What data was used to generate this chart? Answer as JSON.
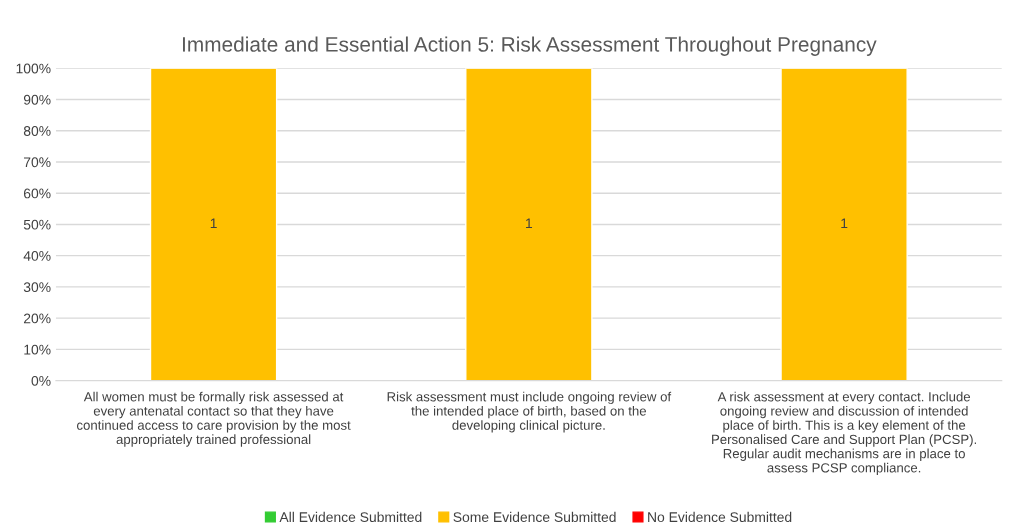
{
  "chart_data": {
    "type": "bar",
    "title": "Immediate and Essential Action 5: Risk Assessment Throughout Pregnancy",
    "categories": [
      "All women must be formally risk assessed at every antenatal contact so that they have continued access to care provision by the most appropriately trained professional",
      "Risk assessment must include ongoing review of the intended place of birth, based on the developing clinical picture.",
      "A risk assessment at every contact. Include ongoing review and discussion of intended place of birth. This is a key element of the Personalised Care and Support Plan (PCSP). Regular audit mechanisms are in place to assess PCSP compliance."
    ],
    "series": [
      {
        "name": "All Evidence Submitted",
        "color": "#33cc33",
        "values": [
          null,
          null,
          null
        ]
      },
      {
        "name": "Some Evidence Submitted",
        "color": "#ffc000",
        "values": [
          100,
          100,
          100
        ]
      },
      {
        "name": "No Evidence Submitted",
        "color": "#ff0000",
        "values": [
          null,
          null,
          null
        ]
      }
    ],
    "annotations": [
      "1",
      "1",
      "1"
    ],
    "stacked": true,
    "ylim": [
      0,
      100
    ],
    "yticks": [
      {
        "value": 0,
        "label": "0%"
      },
      {
        "value": 10,
        "label": "10%"
      },
      {
        "value": 20,
        "label": "20%"
      },
      {
        "value": 30,
        "label": "30%"
      },
      {
        "value": 40,
        "label": "40%"
      },
      {
        "value": 50,
        "label": "50%"
      },
      {
        "value": 60,
        "label": "60%"
      },
      {
        "value": 70,
        "label": "70%"
      },
      {
        "value": 80,
        "label": "80%"
      },
      {
        "value": 90,
        "label": "90%"
      },
      {
        "value": 100,
        "label": "100%"
      }
    ],
    "grid": "y",
    "legend": "bottom"
  }
}
